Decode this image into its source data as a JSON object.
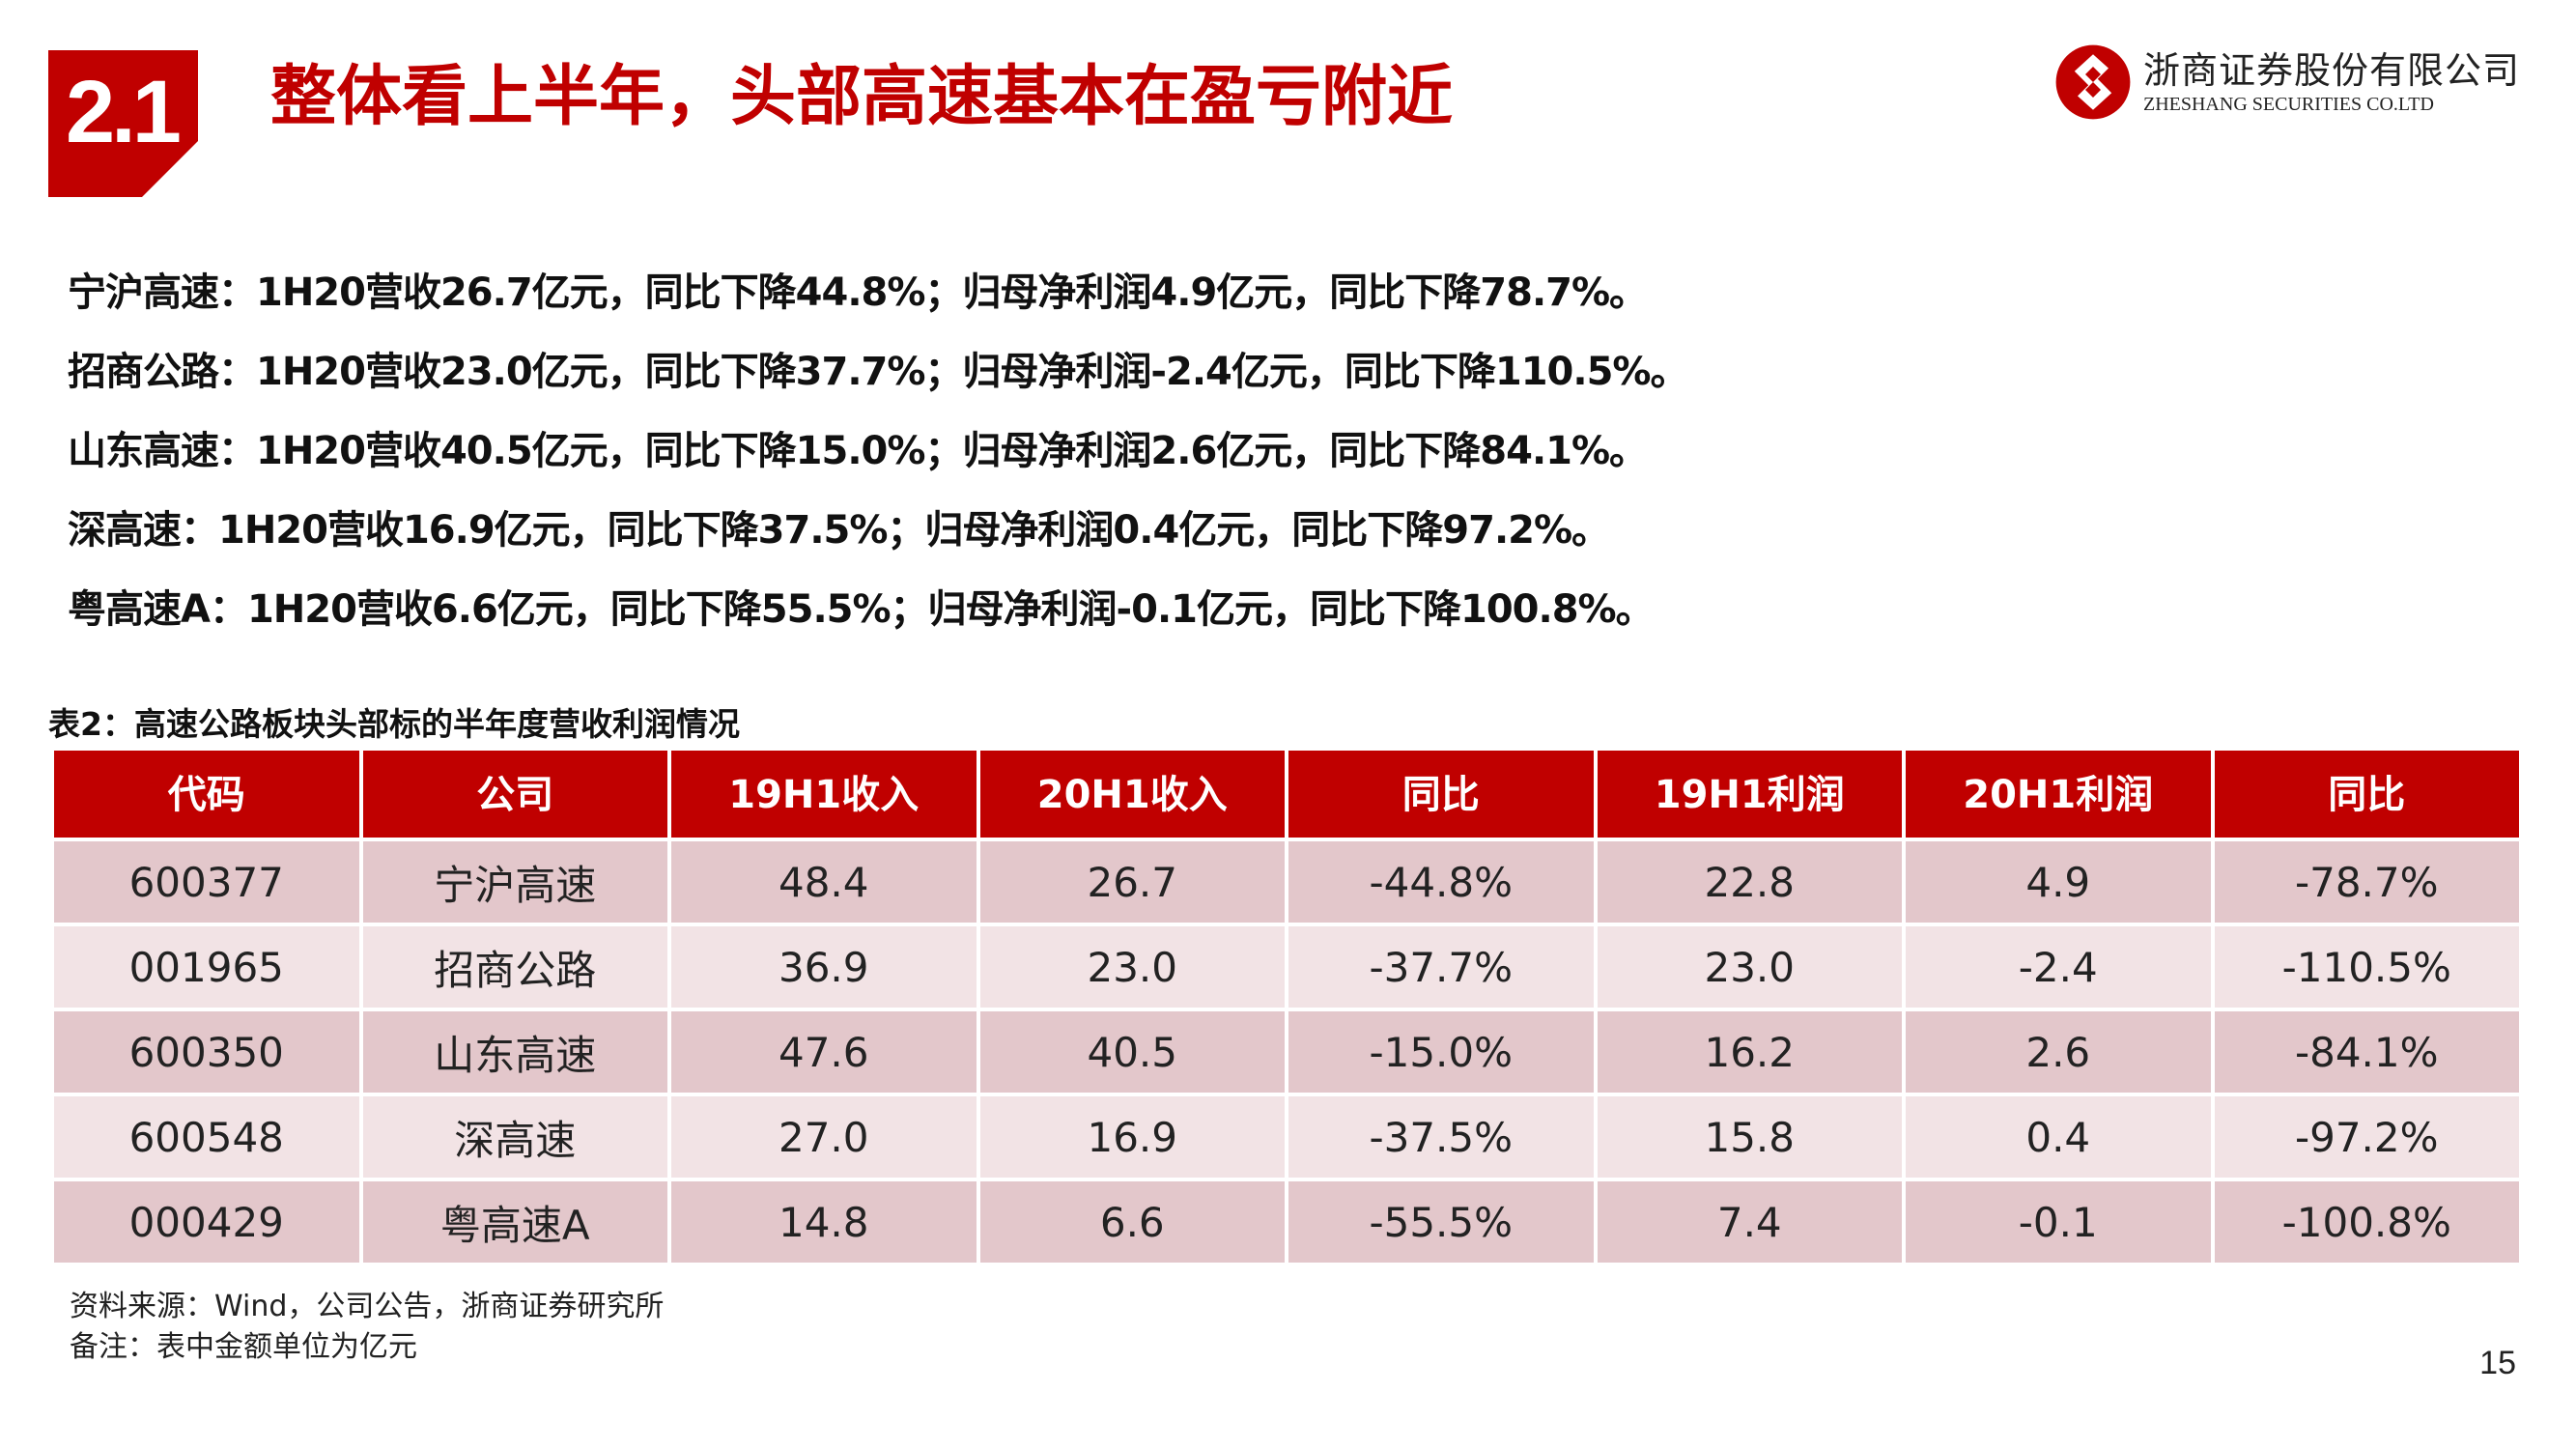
{
  "header": {
    "section_number": "2.1",
    "title": "整体看上半年，头部高速基本在盈亏附近",
    "brand_cn": "浙商证券股份有限公司",
    "brand_en": "ZHESHANG SECURITIES CO.LTD",
    "brand_color": "#c00000"
  },
  "summary": [
    "宁沪高速：1H20营收26.7亿元，同比下降44.8%；归母净利润4.9亿元，同比下降78.7%。",
    "招商公路：1H20营收23.0亿元，同比下降37.7%；归母净利润-2.4亿元，同比下降110.5%。",
    "山东高速：1H20营收40.5亿元，同比下降15.0%；归母净利润2.6亿元，同比下降84.1%。",
    "深高速：1H20营收16.9亿元，同比下降37.5%；归母净利润0.4亿元，同比下降97.2%。",
    "粤高速A：1H20营收6.6亿元，同比下降55.5%；归母净利润-0.1亿元，同比下降100.8%。"
  ],
  "table": {
    "caption": "表2：高速公路板块头部标的半年度营收利润情况",
    "columns": [
      "代码",
      "公司",
      "19H1收入",
      "20H1收入",
      "同比",
      "19H1利润",
      "20H1利润",
      "同比"
    ],
    "rows": [
      [
        "600377",
        "宁沪高速",
        "48.4",
        "26.7",
        "-44.8%",
        "22.8",
        "4.9",
        "-78.7%"
      ],
      [
        "001965",
        "招商公路",
        "36.9",
        "23.0",
        "-37.7%",
        "23.0",
        "-2.4",
        "-110.5%"
      ],
      [
        "600350",
        "山东高速",
        "47.6",
        "40.5",
        "-15.0%",
        "16.2",
        "2.6",
        "-84.1%"
      ],
      [
        "600548",
        "深高速",
        "27.0",
        "16.9",
        "-37.5%",
        "15.8",
        "0.4",
        "-97.2%"
      ],
      [
        "000429",
        "粤高速A",
        "14.8",
        "6.6",
        "-55.5%",
        "7.4",
        "-0.1",
        "-100.8%"
      ]
    ],
    "header_color": "#c00000",
    "row_colors": [
      "#e3c7cb",
      "#f2e3e5"
    ]
  },
  "footer": {
    "source": "资料来源：Wind，公司公告，浙商证券研究所",
    "note": "备注：表中金额单位为亿元",
    "page_number": "15"
  }
}
